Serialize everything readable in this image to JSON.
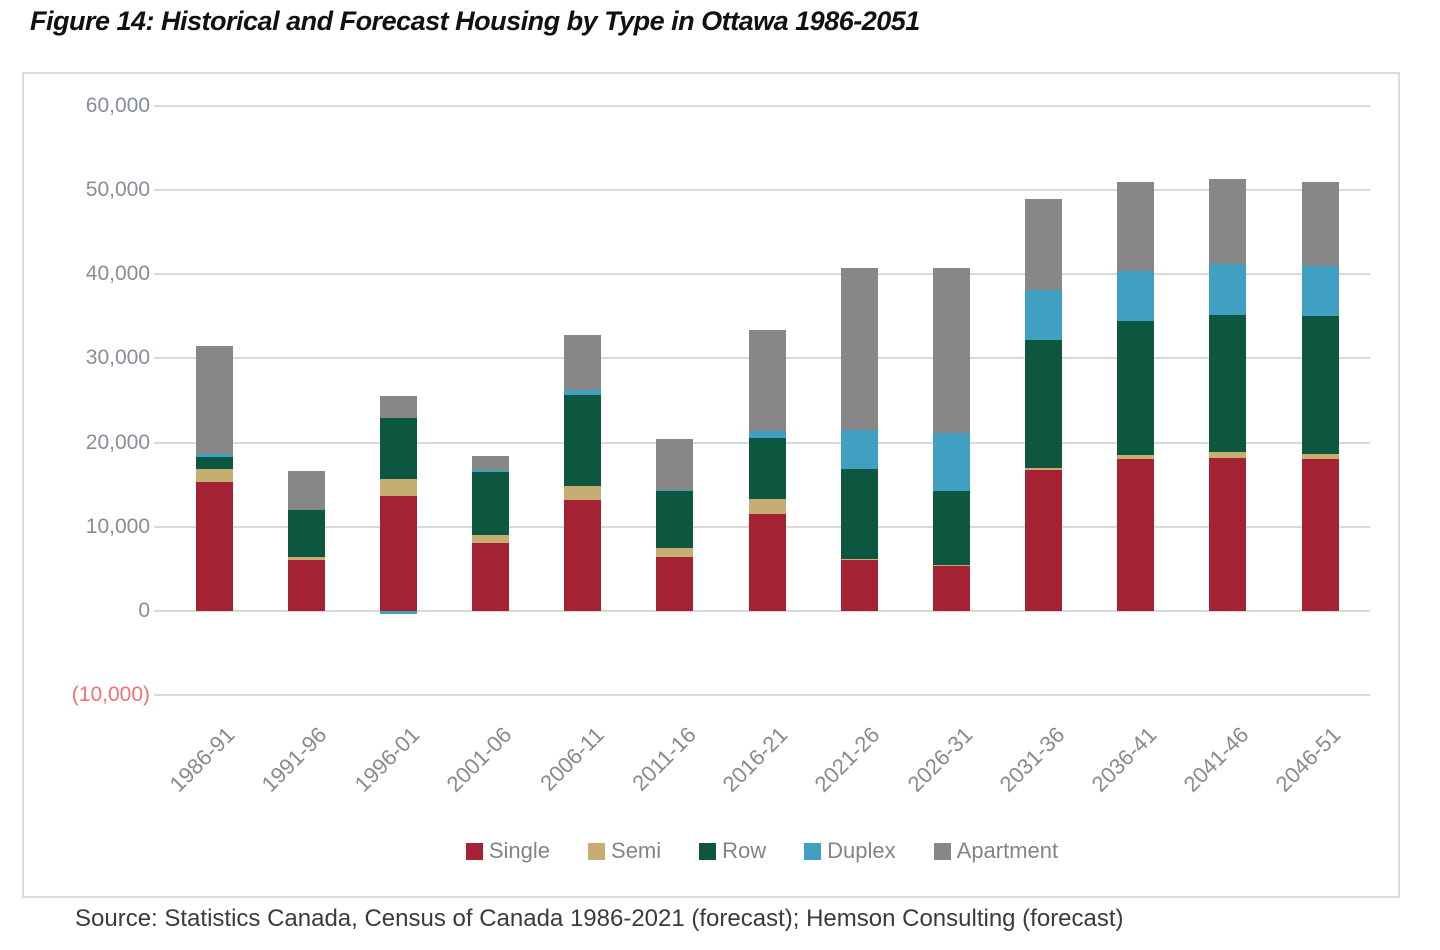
{
  "title": "Figure 14: Historical and Forecast Housing by Type in Ottawa 1986-2051",
  "source_caption": "Source: Statistics Canada, Census of Canada 1986-2021 (forecast); Hemson Consulting (forecast)",
  "chart_data": {
    "type": "bar",
    "stacked": true,
    "grid": true,
    "legend_position": "bottom",
    "ylim": [
      -10000,
      60000
    ],
    "ytick_step": 10000,
    "yticks": [
      {
        "label": "60,000",
        "value": 60000
      },
      {
        "label": "50,000",
        "value": 50000
      },
      {
        "label": "40,000",
        "value": 40000
      },
      {
        "label": "30,000",
        "value": 30000
      },
      {
        "label": "20,000",
        "value": 20000
      },
      {
        "label": "10,000",
        "value": 10000
      },
      {
        "label": "0",
        "value": 0
      },
      {
        "label": "(10,000)",
        "value": -10000,
        "negative": true
      }
    ],
    "categories": [
      "1986-91",
      "1991-96",
      "1996-01",
      "2001-06",
      "2006-11",
      "2011-16",
      "2016-21",
      "2021-26",
      "2026-31",
      "2031-36",
      "2036-41",
      "2041-46",
      "2046-51"
    ],
    "series": [
      {
        "name": "Single",
        "color": "#a52235",
        "values": [
          15300,
          6100,
          13600,
          8100,
          13200,
          6400,
          11500,
          6000,
          5400,
          16700,
          18000,
          18200,
          18000
        ]
      },
      {
        "name": "Semi",
        "color": "#c6ae72",
        "values": [
          1600,
          300,
          2100,
          900,
          1700,
          1100,
          1800,
          200,
          100,
          300,
          500,
          700,
          700
        ]
      },
      {
        "name": "Row",
        "color": "#0d5741",
        "values": [
          1400,
          5600,
          7200,
          7600,
          10700,
          6700,
          7300,
          10700,
          8800,
          15200,
          15900,
          16200,
          16300
        ]
      },
      {
        "name": "Duplex",
        "color": "#3fa0c2",
        "values": [
          400,
          0,
          -400,
          100,
          700,
          200,
          800,
          4600,
          6800,
          5900,
          6000,
          6100,
          6000
        ]
      },
      {
        "name": "Apartment",
        "color": "#878787",
        "values": [
          12800,
          4600,
          2600,
          1700,
          6500,
          6000,
          12000,
          19200,
          19600,
          10800,
          10600,
          10100,
          10000
        ]
      }
    ],
    "bar_totals": [
      31500,
      16600,
      25100,
      18400,
      32800,
      20400,
      33400,
      40700,
      40700,
      48900,
      51000,
      51300,
      51000
    ],
    "colors": {
      "gridline": "#d9d9d9",
      "axis_text": "#868d99",
      "negative_tick_text": "#f57070",
      "category_text": "#8a8a8a",
      "legend_text": "#848484",
      "title_text": "#111111",
      "source_text": "#3b3b3b"
    }
  }
}
